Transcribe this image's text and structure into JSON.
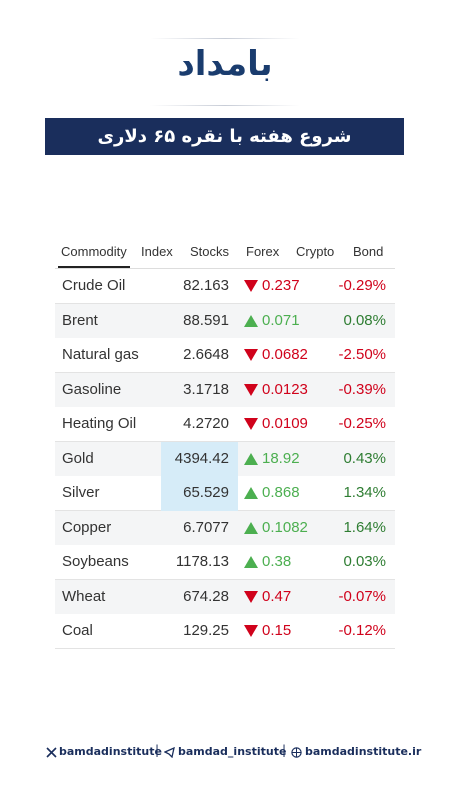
{
  "header": {
    "logo": "بامداد",
    "title": "شروع هفته با نقره ۶۵ دلاری"
  },
  "table": {
    "tabs": [
      "Commodity",
      "Index",
      "Stocks",
      "Forex",
      "Crypto",
      "Bond"
    ],
    "active_tab": 0,
    "up_color": "#4caf50",
    "down_color": "#d0021b",
    "highlight_color": "#d6ecf8",
    "rows": [
      {
        "name": "Crude Oil",
        "price": "82.163",
        "direction": "down",
        "change": "0.237",
        "percent": "-0.29%"
      },
      {
        "name": "Brent",
        "price": "88.591",
        "direction": "up",
        "change": "0.071",
        "percent": "0.08%"
      },
      {
        "name": "Natural gas",
        "price": "2.6648",
        "direction": "down",
        "change": "0.0682",
        "percent": "-2.50%"
      },
      {
        "name": "Gasoline",
        "price": "3.1718",
        "direction": "down",
        "change": "0.0123",
        "percent": "-0.39%"
      },
      {
        "name": "Heating Oil",
        "price": "4.2720",
        "direction": "down",
        "change": "0.0109",
        "percent": "-0.25%"
      },
      {
        "name": "Gold",
        "price": "4394.42",
        "direction": "up",
        "change": "18.92",
        "percent": "0.43%",
        "highlight": true
      },
      {
        "name": "Silver",
        "price": "65.529",
        "direction": "up",
        "change": "0.868",
        "percent": "1.34%",
        "highlight": true
      },
      {
        "name": "Copper",
        "price": "6.7077",
        "direction": "up",
        "change": "0.1082",
        "percent": "1.64%"
      },
      {
        "name": "Soybeans",
        "price": "1178.13",
        "direction": "up",
        "change": "0.38",
        "percent": "0.03%"
      },
      {
        "name": "Wheat",
        "price": "674.28",
        "direction": "down",
        "change": "0.47",
        "percent": "-0.07%"
      },
      {
        "name": "Coal",
        "price": "129.25",
        "direction": "down",
        "change": "0.15",
        "percent": "-0.12%"
      }
    ]
  },
  "footer": {
    "x": "bamdadinstitute",
    "telegram": "bamdad_institute",
    "web": "bamdadinstitute.ir"
  }
}
